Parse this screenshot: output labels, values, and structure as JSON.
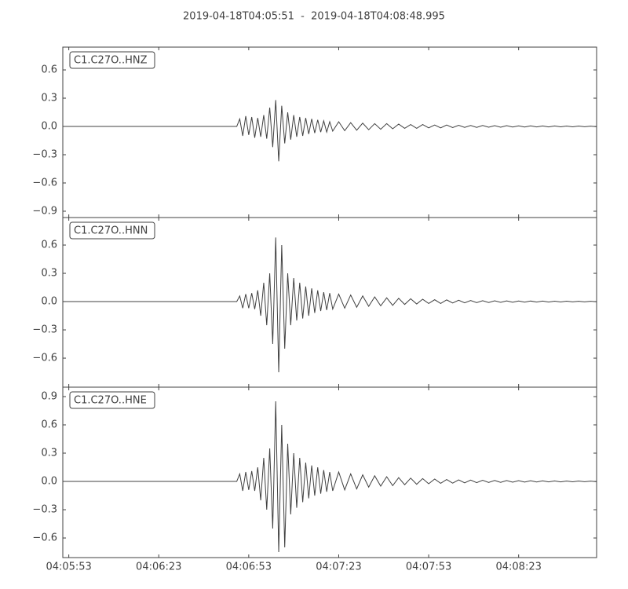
{
  "title": "2019-04-18T04:05:51  -  2019-04-18T04:08:48.995",
  "chart_data": [
    {
      "type": "line",
      "x": [
        0,
        58,
        59,
        60,
        61,
        62,
        63,
        64,
        65,
        66,
        67,
        68,
        69,
        70,
        71,
        72,
        73,
        74,
        75,
        76,
        77,
        78,
        79,
        80,
        81,
        82,
        83,
        84,
        85,
        86,
        87,
        88,
        89,
        90,
        92,
        94,
        96,
        98,
        100,
        102,
        104,
        106,
        108,
        110,
        112,
        114,
        116,
        118,
        120,
        122,
        124,
        126,
        128,
        130,
        132,
        134,
        136,
        138,
        140,
        142,
        144,
        146,
        148,
        150,
        152,
        154,
        156,
        158,
        160,
        162,
        164,
        166,
        168,
        170,
        172,
        174,
        176,
        178
      ],
      "series": [
        {
          "name": "C1.C27O..HNZ",
          "color": "#404040",
          "values": [
            0,
            0,
            0.08,
            -0.1,
            0.11,
            -0.09,
            0.1,
            -0.12,
            0.09,
            -0.11,
            0.12,
            -0.13,
            0.2,
            -0.22,
            0.28,
            -0.37,
            0.22,
            -0.18,
            0.15,
            -0.14,
            0.12,
            -0.11,
            0.1,
            -0.1,
            0.09,
            -0.08,
            0.08,
            -0.07,
            0.07,
            -0.06,
            0.06,
            -0.06,
            0.05,
            -0.05,
            0.05,
            -0.045,
            0.04,
            -0.04,
            0.035,
            -0.035,
            0.03,
            -0.03,
            0.03,
            -0.025,
            0.025,
            -0.02,
            0.02,
            -0.02,
            0.02,
            -0.015,
            0.015,
            -0.015,
            0.015,
            -0.012,
            0.012,
            -0.01,
            0.01,
            -0.01,
            0.01,
            -0.008,
            0.008,
            -0.008,
            0.008,
            -0.006,
            0.006,
            -0.006,
            0.006,
            -0.005,
            0.005,
            -0.005,
            0.005,
            -0.004,
            0.004,
            -0.004,
            0.004,
            -0.003,
            0.003,
            -0.003
          ]
        }
      ],
      "ylim": [
        -0.967,
        0.842
      ],
      "yticks": [
        0.6,
        0.3,
        {
          "value": 0,
          "label": "0.0"
        },
        {
          "value": -0.3,
          "label": "−0.3"
        },
        {
          "value": -0.6,
          "label": "−0.6"
        },
        {
          "value": -0.9,
          "label": "−0.9"
        }
      ]
    },
    {
      "type": "line",
      "x": [
        0,
        58,
        59,
        60,
        61,
        62,
        63,
        64,
        65,
        66,
        67,
        68,
        69,
        70,
        71,
        72,
        73,
        74,
        75,
        76,
        77,
        78,
        79,
        80,
        81,
        82,
        83,
        84,
        85,
        86,
        87,
        88,
        89,
        90,
        92,
        94,
        96,
        98,
        100,
        102,
        104,
        106,
        108,
        110,
        112,
        114,
        116,
        118,
        120,
        122,
        124,
        126,
        128,
        130,
        132,
        134,
        136,
        138,
        140,
        142,
        144,
        146,
        148,
        150,
        152,
        154,
        156,
        158,
        160,
        162,
        164,
        166,
        168,
        170,
        172,
        174,
        176,
        178
      ],
      "series": [
        {
          "name": "C1.C27O..HNN",
          "color": "#404040",
          "values": [
            0,
            0,
            0.06,
            -0.07,
            0.08,
            -0.07,
            0.09,
            -0.08,
            0.12,
            -0.15,
            0.2,
            -0.25,
            0.3,
            -0.45,
            0.68,
            -0.75,
            0.6,
            -0.5,
            0.3,
            -0.25,
            0.25,
            -0.2,
            0.2,
            -0.18,
            0.16,
            -0.15,
            0.14,
            -0.12,
            0.12,
            -0.1,
            0.1,
            -0.09,
            0.09,
            -0.08,
            0.08,
            -0.07,
            0.07,
            -0.06,
            0.06,
            -0.05,
            0.05,
            -0.045,
            0.04,
            -0.04,
            0.035,
            -0.03,
            0.03,
            -0.025,
            0.025,
            -0.02,
            0.02,
            -0.02,
            0.018,
            -0.015,
            0.015,
            -0.013,
            0.012,
            -0.011,
            0.01,
            -0.01,
            0.009,
            -0.008,
            0.008,
            -0.007,
            0.007,
            -0.006,
            0.006,
            -0.005,
            0.005,
            -0.005,
            0.004,
            -0.004,
            0.004,
            -0.003,
            0.003,
            -0.003,
            0.003,
            -0.002
          ]
        }
      ],
      "ylim": [
        -0.908,
        0.892
      ],
      "yticks": [
        0.6,
        0.3,
        {
          "value": 0,
          "label": "0.0"
        },
        {
          "value": -0.3,
          "label": "−0.3"
        },
        {
          "value": -0.6,
          "label": "−0.6"
        }
      ]
    },
    {
      "type": "line",
      "x": [
        0,
        58,
        59,
        60,
        61,
        62,
        63,
        64,
        65,
        66,
        67,
        68,
        69,
        70,
        71,
        72,
        73,
        74,
        75,
        76,
        77,
        78,
        79,
        80,
        81,
        82,
        83,
        84,
        85,
        86,
        87,
        88,
        89,
        90,
        92,
        94,
        96,
        98,
        100,
        102,
        104,
        106,
        108,
        110,
        112,
        114,
        116,
        118,
        120,
        122,
        124,
        126,
        128,
        130,
        132,
        134,
        136,
        138,
        140,
        142,
        144,
        146,
        148,
        150,
        152,
        154,
        156,
        158,
        160,
        162,
        164,
        166,
        168,
        170,
        172,
        174,
        176,
        178
      ],
      "series": [
        {
          "name": "C1.C27O..HNE",
          "color": "#404040",
          "values": [
            0,
            0,
            0.08,
            -0.1,
            0.1,
            -0.09,
            0.11,
            -0.1,
            0.15,
            -0.2,
            0.25,
            -0.3,
            0.35,
            -0.5,
            0.85,
            -0.75,
            0.6,
            -0.7,
            0.4,
            -0.35,
            0.3,
            -0.28,
            0.25,
            -0.22,
            0.2,
            -0.18,
            0.17,
            -0.15,
            0.15,
            -0.13,
            0.12,
            -0.11,
            0.1,
            -0.1,
            0.1,
            -0.09,
            0.08,
            -0.08,
            0.07,
            -0.06,
            0.06,
            -0.05,
            0.05,
            -0.045,
            0.04,
            -0.035,
            0.035,
            -0.03,
            0.03,
            -0.025,
            0.025,
            -0.02,
            0.02,
            -0.018,
            0.016,
            -0.015,
            0.014,
            -0.013,
            0.012,
            -0.011,
            0.01,
            -0.01,
            0.009,
            -0.008,
            0.008,
            -0.007,
            0.007,
            -0.006,
            0.006,
            -0.005,
            0.005,
            -0.005,
            0.004,
            -0.004,
            0.004,
            -0.003,
            0.003,
            -0.003
          ]
        }
      ],
      "ylim": [
        -0.808,
        1.0
      ],
      "yticks": [
        0.9,
        0.6,
        0.3,
        {
          "value": 0,
          "label": "0.0"
        },
        {
          "value": -0.3,
          "label": "−0.3"
        },
        {
          "value": -0.6,
          "label": "−0.6"
        }
      ],
      "xlim": [
        0,
        177.995
      ],
      "xticks": [
        {
          "value": 2,
          "label": "04:05:53"
        },
        {
          "value": 32,
          "label": "04:06:23"
        },
        {
          "value": 62,
          "label": "04:06:53"
        },
        {
          "value": 92,
          "label": "04:07:23"
        },
        {
          "value": 122,
          "label": "04:07:53"
        },
        {
          "value": 152,
          "label": "04:08:23"
        }
      ]
    }
  ]
}
